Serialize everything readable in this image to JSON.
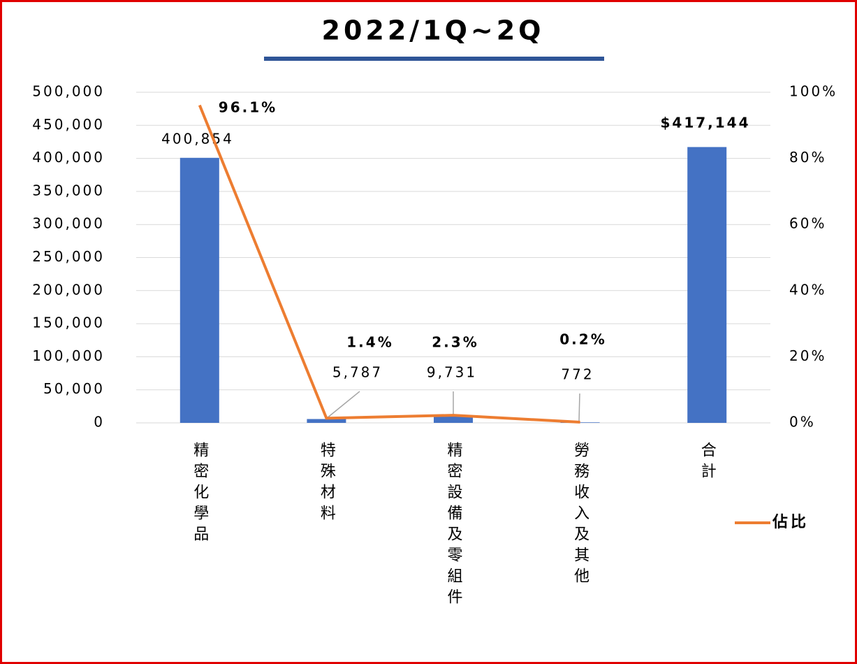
{
  "chart_data": {
    "type": "bar",
    "title": "2022/1Q~2Q",
    "categories": [
      "精密化學品",
      "特殊材料",
      "精密設備及零組件",
      "勞務收入及其他",
      "合計"
    ],
    "series": [
      {
        "type": "bar",
        "color": "#4472c4",
        "values": [
          400854,
          5787,
          9731,
          772,
          417144
        ],
        "value_labels": [
          "400,854",
          "5,787",
          "9,731",
          "772",
          "$417,144"
        ]
      },
      {
        "type": "line",
        "name": "佔比",
        "color": "#ed7d31",
        "axis": "y2",
        "values": [
          96.1,
          1.4,
          2.3,
          0.2,
          null
        ],
        "value_labels": [
          "96.1%",
          "1.4%",
          "2.3%",
          "0.2%",
          null
        ]
      }
    ],
    "ylim": [
      0,
      500000
    ],
    "yticks": [
      0,
      {
        "value": 50000,
        "label": "50,000"
      },
      {
        "value": 100000,
        "label": "100,000"
      },
      {
        "value": 150000,
        "label": "150,000"
      },
      {
        "value": 200000,
        "label": "200,000"
      },
      {
        "value": 250000,
        "label": "250,000"
      },
      {
        "value": 300000,
        "label": "300,000"
      },
      {
        "value": 350000,
        "label": "350,000"
      },
      {
        "value": 400000,
        "label": "400,000"
      },
      {
        "value": 450000,
        "label": "450,000"
      },
      {
        "value": 500000,
        "label": "500,000"
      }
    ],
    "y2lim": [
      0,
      100
    ],
    "y2ticks": [
      {
        "value": 0,
        "label": "0%"
      },
      {
        "value": 20,
        "label": "20%"
      },
      {
        "value": 40,
        "label": "40%"
      },
      {
        "value": 60,
        "label": "60%"
      },
      {
        "value": 80,
        "label": "80%"
      },
      {
        "value": 100,
        "label": "100%"
      }
    ],
    "grid": true,
    "legend": "bottom-right"
  }
}
